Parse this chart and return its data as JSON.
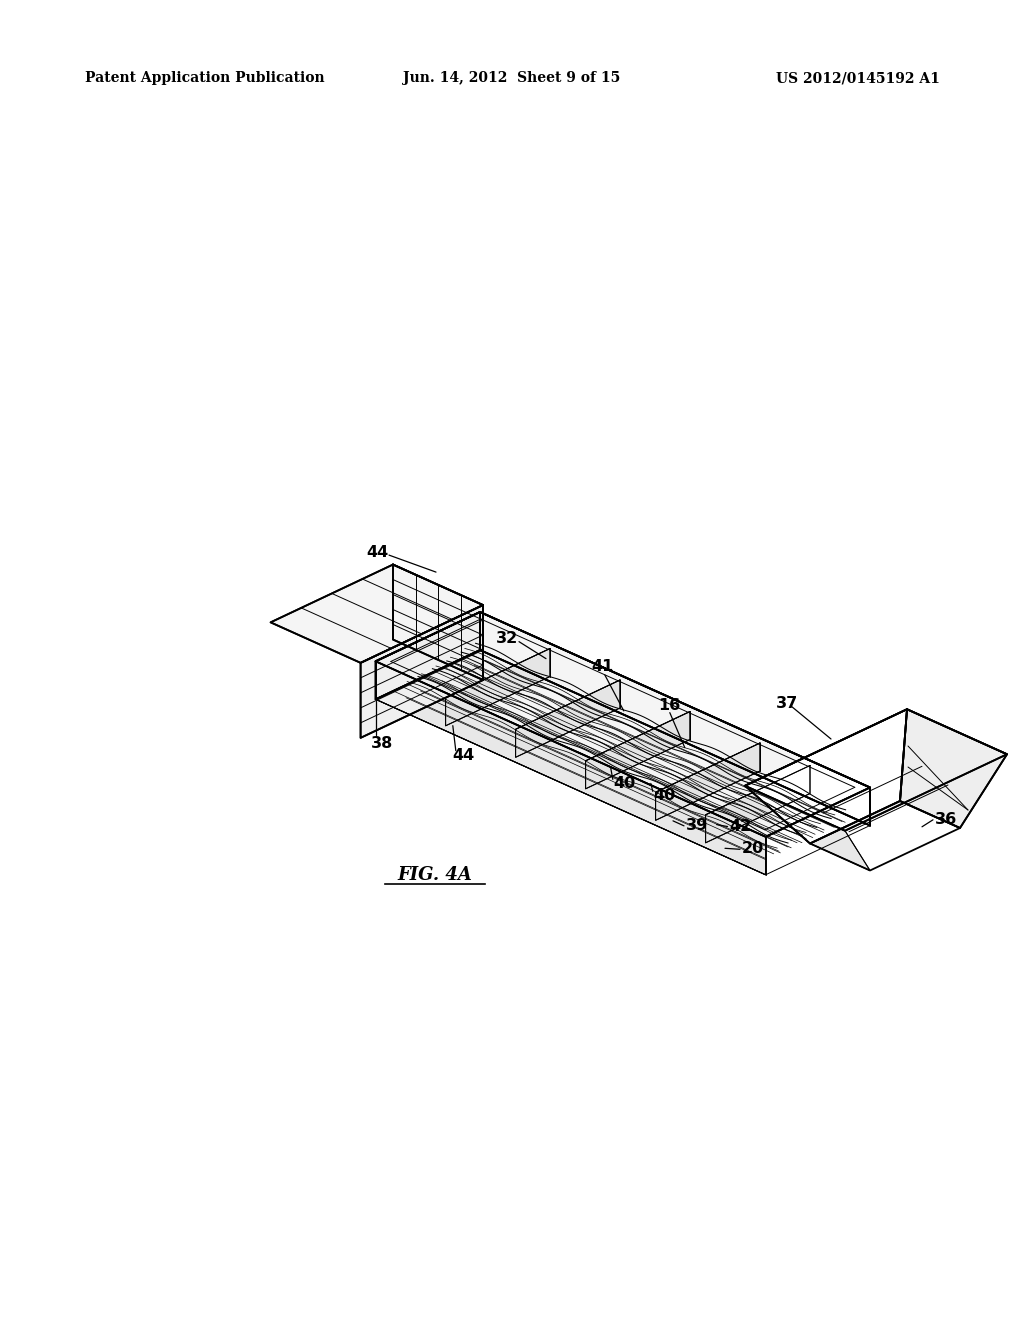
{
  "bg_color": "#ffffff",
  "header_left": "Patent Application Publication",
  "header_center": "Jun. 14, 2012  Sheet 9 of 15",
  "header_right": "US 2012/0145192 A1",
  "fig_label": "FIG. 4A",
  "header_fontsize": 10,
  "fig_label_fontsize": 13,
  "lw_main": 1.3,
  "lw_thin": 0.7,
  "lw_xtra": 0.5
}
